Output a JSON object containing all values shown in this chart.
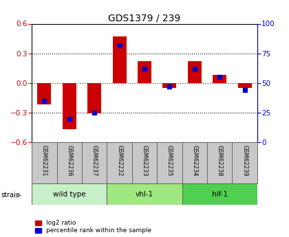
{
  "title": "GDS1379 / 239",
  "samples": [
    "GSM62231",
    "GSM62236",
    "GSM62237",
    "GSM62232",
    "GSM62233",
    "GSM62235",
    "GSM62234",
    "GSM62238",
    "GSM62239"
  ],
  "log2_ratio": [
    -0.22,
    -0.47,
    -0.31,
    0.47,
    0.22,
    -0.05,
    0.22,
    0.08,
    -0.05
  ],
  "percentile_rank": [
    35,
    20,
    25,
    82,
    62,
    47,
    62,
    55,
    44
  ],
  "groups": [
    {
      "label": "wild type",
      "indices": [
        0,
        1,
        2
      ],
      "color": "#c8f0c8"
    },
    {
      "label": "vhl-1",
      "indices": [
        3,
        4,
        5
      ],
      "color": "#a0e880"
    },
    {
      "label": "hif-1",
      "indices": [
        6,
        7,
        8
      ],
      "color": "#50d050"
    }
  ],
  "ylim_left": [
    -0.6,
    0.6
  ],
  "yticks_left": [
    -0.6,
    -0.3,
    0.0,
    0.3,
    0.6
  ],
  "yticks_right": [
    0,
    25,
    50,
    75,
    100
  ],
  "red_color": "#cc0000",
  "blue_color": "#0000cc",
  "bg_color": "#ffffff",
  "tick_area_bg": "#c8c8c8"
}
